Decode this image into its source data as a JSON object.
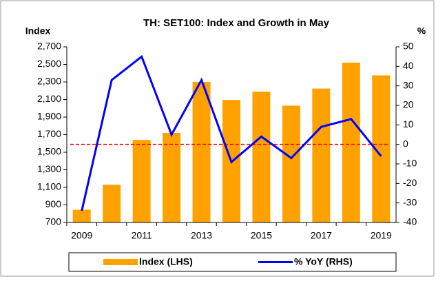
{
  "chart_data": {
    "type": "bar_line",
    "title": "TH: SET100: Index and Growth in May",
    "y_label": "Index",
    "y2_label": "%",
    "categories": [
      "2009",
      null,
      "2011",
      null,
      "2013",
      null,
      "2015",
      null,
      "2017",
      null,
      "2019"
    ],
    "series": [
      {
        "name": "Index (LHS)",
        "type": "bar",
        "color": "#ffa200",
        "values": [
          845,
          1130,
          1640,
          1720,
          2300,
          2095,
          2190,
          2030,
          2225,
          2520,
          2375
        ]
      },
      {
        "name": "% YoY (RHS)",
        "type": "line",
        "axis": "y2",
        "color": "#0000ff",
        "values": [
          -34,
          33,
          45,
          5,
          33,
          -9,
          4,
          -7,
          9,
          13,
          -6
        ]
      }
    ],
    "ylim": [
      700,
      2700
    ],
    "yticks": [
      700,
      900,
      {
        "value": 1100,
        "label": "1,100"
      },
      {
        "value": 1300,
        "label": "1,300"
      },
      {
        "value": 1500,
        "label": "1,500"
      },
      {
        "value": 1700,
        "label": "1,700"
      },
      {
        "value": 1900,
        "label": "1,900"
      },
      {
        "value": 2100,
        "label": "2,100"
      },
      {
        "value": 2300,
        "label": "2,300"
      },
      {
        "value": 2500,
        "label": "2,500"
      },
      {
        "value": 2700,
        "label": "2,700"
      }
    ],
    "y2lim": [
      -40,
      50
    ],
    "y2ticks": [
      -40,
      -30,
      -20,
      -10,
      0,
      10,
      20,
      30,
      40,
      50
    ],
    "reference_line": {
      "value": 0,
      "axis": "y2",
      "color": "#ff0000"
    },
    "legend": "bottom"
  }
}
